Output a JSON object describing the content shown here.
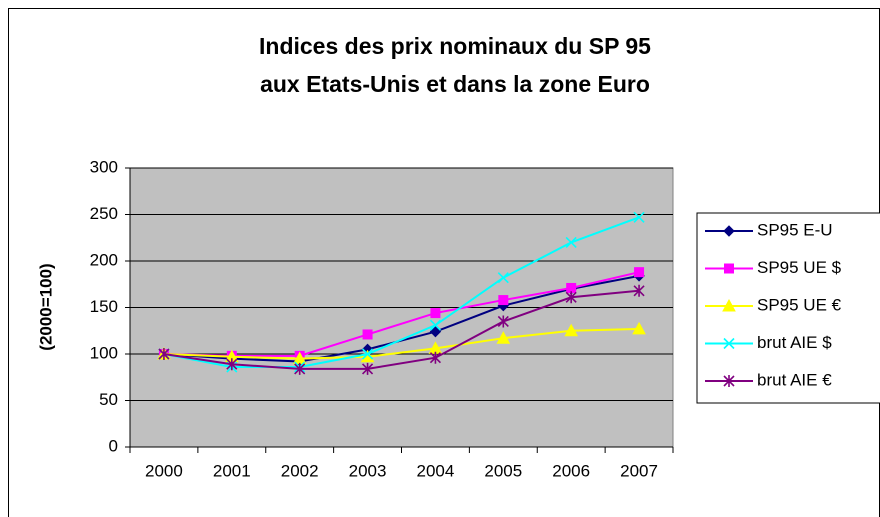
{
  "chart_data": {
    "type": "line",
    "title": [
      "Indices des prix nominaux du SP 95",
      "aux Etats-Unis et dans la zone Euro"
    ],
    "y_label": "(2000=100)",
    "categories": [
      "2000",
      "2001",
      "2002",
      "2003",
      "2004",
      "2005",
      "2006",
      "2007"
    ],
    "series": [
      {
        "name": "SP95 E-U",
        "color": "#000080",
        "marker": "diamond",
        "values": [
          100,
          95,
          92,
          105,
          124,
          152,
          170,
          184
        ]
      },
      {
        "name": "SP95 UE $",
        "color": "#FF00FF",
        "marker": "square",
        "values": [
          100,
          98,
          98,
          121,
          144,
          158,
          171,
          188
        ]
      },
      {
        "name": "SP95 UE €",
        "color": "#FFFF00",
        "marker": "triangle",
        "values": [
          100,
          97,
          95,
          97,
          106,
          117,
          125,
          127
        ]
      },
      {
        "name": "brut AIE $",
        "color": "#00FFFF",
        "marker": "cross",
        "values": [
          100,
          86,
          86,
          100,
          131,
          182,
          220,
          247
        ]
      },
      {
        "name": "brut AIE €",
        "color": "#800080",
        "marker": "star",
        "values": [
          100,
          89,
          84,
          84,
          96,
          135,
          161,
          168
        ]
      }
    ],
    "ylim": [
      0,
      300
    ],
    "yticks": [
      0,
      50,
      100,
      150,
      200,
      250,
      300
    ],
    "grid": true,
    "legend": "right",
    "plot_background": "#C0C0C0"
  }
}
